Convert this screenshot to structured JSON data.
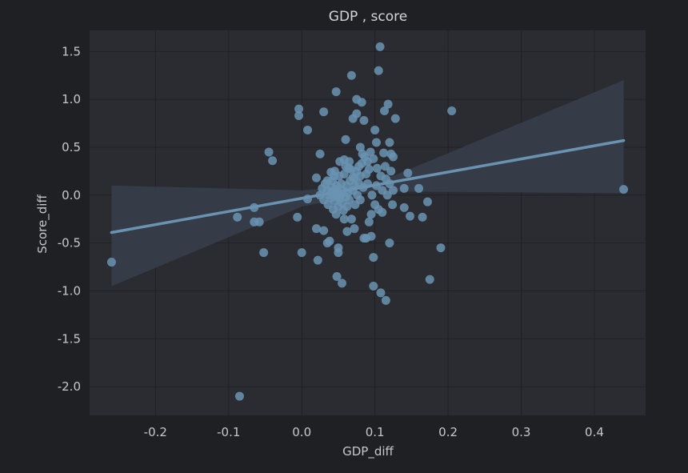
{
  "chart_data": {
    "type": "scatter",
    "title": "GDP , score",
    "xlabel": "GDP_diff",
    "ylabel": "Score_diff",
    "xlim": [
      -0.29,
      0.47
    ],
    "ylim": [
      -2.3,
      1.72
    ],
    "xticks": [
      -0.2,
      -0.1,
      0.0,
      0.1,
      0.2,
      0.3,
      0.4
    ],
    "xtick_labels": [
      "-0.2",
      "-0.1",
      "0.0",
      "0.1",
      "0.2",
      "0.3",
      "0.4"
    ],
    "yticks": [
      1.5,
      1.0,
      0.5,
      0.0,
      -0.5,
      -1.0,
      -1.5,
      -2.0
    ],
    "ytick_labels": [
      "1.5",
      "1.0",
      "0.5",
      "0.0",
      "-0.5",
      "-1.0",
      "-1.5",
      "-2.0"
    ],
    "grid": true,
    "regression": {
      "x_range": [
        -0.26,
        0.44
      ],
      "line": [
        [
          -0.26,
          -0.39
        ],
        [
          0.44,
          0.57
        ]
      ],
      "ci_upper": [
        [
          -0.26,
          0.1
        ],
        [
          0.0,
          0.05
        ],
        [
          0.1,
          0.12
        ],
        [
          0.44,
          1.2
        ]
      ],
      "ci_lower": [
        [
          -0.26,
          -0.95
        ],
        [
          0.0,
          -0.12
        ],
        [
          0.1,
          0.04
        ],
        [
          0.44,
          0.02
        ]
      ]
    },
    "series": [
      {
        "points": [
          [
            -0.26,
            -0.7
          ],
          [
            -0.085,
            -2.1
          ],
          [
            -0.088,
            -0.23
          ],
          [
            -0.065,
            -0.13
          ],
          [
            -0.065,
            -0.28
          ],
          [
            -0.058,
            -0.28
          ],
          [
            -0.052,
            -0.6
          ],
          [
            -0.045,
            0.45
          ],
          [
            -0.04,
            0.36
          ],
          [
            -0.006,
            -0.23
          ],
          [
            -0.004,
            0.9
          ],
          [
            -0.004,
            0.83
          ],
          [
            0.0,
            -0.6
          ],
          [
            0.008,
            0.68
          ],
          [
            0.008,
            -0.04
          ],
          [
            0.02,
            -0.35
          ],
          [
            0.022,
            -0.68
          ],
          [
            0.025,
            0.43
          ],
          [
            0.03,
            -0.37
          ],
          [
            0.03,
            0.87
          ],
          [
            0.035,
            -0.5
          ],
          [
            0.038,
            -0.48
          ],
          [
            0.04,
            0.24
          ],
          [
            0.042,
            0.03
          ],
          [
            0.045,
            0.25
          ],
          [
            0.047,
            1.08
          ],
          [
            0.048,
            -0.85
          ],
          [
            0.05,
            -0.55
          ],
          [
            0.05,
            -0.6
          ],
          [
            0.052,
            0.35
          ],
          [
            0.055,
            -0.92
          ],
          [
            0.058,
            -0.25
          ],
          [
            0.06,
            0.58
          ],
          [
            0.062,
            -0.38
          ],
          [
            0.065,
            0.35
          ],
          [
            0.068,
            1.25
          ],
          [
            0.07,
            0.8
          ],
          [
            0.072,
            -0.35
          ],
          [
            0.075,
            0.85
          ],
          [
            0.075,
            1.0
          ],
          [
            0.078,
            0.3
          ],
          [
            0.08,
            0.5
          ],
          [
            0.082,
            0.97
          ],
          [
            0.083,
            0.43
          ],
          [
            0.085,
            0.78
          ],
          [
            0.085,
            -0.45
          ],
          [
            0.088,
            -0.45
          ],
          [
            0.09,
            0.35
          ],
          [
            0.092,
            -0.28
          ],
          [
            0.095,
            -0.43
          ],
          [
            0.095,
            -0.2
          ],
          [
            0.098,
            -0.65
          ],
          [
            0.098,
            -0.95
          ],
          [
            0.1,
            0.68
          ],
          [
            0.102,
            0.55
          ],
          [
            0.103,
            0.28
          ],
          [
            0.105,
            1.3
          ],
          [
            0.107,
            1.55
          ],
          [
            0.108,
            -1.02
          ],
          [
            0.11,
            -0.18
          ],
          [
            0.112,
            0.44
          ],
          [
            0.113,
            0.88
          ],
          [
            0.115,
            -1.1
          ],
          [
            0.115,
            0.17
          ],
          [
            0.118,
            0.95
          ],
          [
            0.12,
            0.55
          ],
          [
            0.12,
            -0.5
          ],
          [
            0.122,
            0.25
          ],
          [
            0.125,
            0.4
          ],
          [
            0.125,
            0.05
          ],
          [
            0.128,
            0.8
          ],
          [
            0.14,
            0.07
          ],
          [
            0.14,
            -0.13
          ],
          [
            0.145,
            0.23
          ],
          [
            0.148,
            -0.22
          ],
          [
            0.16,
            0.07
          ],
          [
            0.165,
            -0.23
          ],
          [
            0.172,
            -0.07
          ],
          [
            0.175,
            -0.88
          ],
          [
            0.19,
            -0.55
          ],
          [
            0.205,
            0.88
          ],
          [
            0.44,
            0.06
          ],
          [
            0.02,
            0.18
          ],
          [
            0.025,
            0.0
          ],
          [
            0.028,
            0.07
          ],
          [
            0.03,
            -0.05
          ],
          [
            0.032,
            0.12
          ],
          [
            0.035,
            0.05
          ],
          [
            0.036,
            -0.1
          ],
          [
            0.038,
            0.0
          ],
          [
            0.04,
            0.08
          ],
          [
            0.04,
            -0.03
          ],
          [
            0.042,
            0.15
          ],
          [
            0.043,
            -0.15
          ],
          [
            0.044,
            0.02
          ],
          [
            0.045,
            -0.06
          ],
          [
            0.046,
            0.06
          ],
          [
            0.047,
            -0.2
          ],
          [
            0.048,
            0.1
          ],
          [
            0.049,
            -0.02
          ],
          [
            0.05,
            0.03
          ],
          [
            0.05,
            -0.12
          ],
          [
            0.051,
            0.2
          ],
          [
            0.052,
            -0.04
          ],
          [
            0.053,
            0.0
          ],
          [
            0.054,
            0.12
          ],
          [
            0.055,
            -0.08
          ],
          [
            0.056,
            0.05
          ],
          [
            0.057,
            -0.16
          ],
          [
            0.058,
            0.22
          ],
          [
            0.06,
            -0.02
          ],
          [
            0.061,
            0.1
          ],
          [
            0.062,
            -0.12
          ],
          [
            0.063,
            0.02
          ],
          [
            0.064,
            0.28
          ],
          [
            0.065,
            -0.05
          ],
          [
            0.066,
            0.15
          ],
          [
            0.068,
            -0.25
          ],
          [
            0.07,
            0.05
          ],
          [
            0.072,
            0.18
          ],
          [
            0.073,
            -0.1
          ],
          [
            0.075,
            0.25
          ],
          [
            0.076,
            0.0
          ],
          [
            0.078,
            0.12
          ],
          [
            0.08,
            -0.05
          ],
          [
            0.08,
            0.2
          ],
          [
            0.082,
            0.33
          ],
          [
            0.084,
            0.08
          ],
          [
            0.086,
            0.4
          ],
          [
            0.088,
            0.22
          ],
          [
            0.09,
            0.12
          ],
          [
            0.092,
            0.27
          ],
          [
            0.094,
            0.45
          ],
          [
            0.096,
            0.0
          ],
          [
            0.098,
            0.38
          ],
          [
            0.1,
            -0.1
          ],
          [
            0.102,
            0.1
          ],
          [
            0.105,
            -0.15
          ],
          [
            0.108,
            0.2
          ],
          [
            0.11,
            0.05
          ],
          [
            0.114,
            0.3
          ],
          [
            0.117,
            0.0
          ],
          [
            0.12,
            0.12
          ],
          [
            0.122,
            0.43
          ],
          [
            0.124,
            -0.1
          ],
          [
            0.035,
            0.15
          ],
          [
            0.058,
            0.37
          ],
          [
            0.06,
            0.3
          ],
          [
            0.067,
            0.27
          ],
          [
            0.07,
            0.19
          ],
          [
            0.072,
            0.1
          ],
          [
            0.044,
            0.2
          ]
        ]
      }
    ],
    "colors": {
      "point": "#6a93b1",
      "line": "#6a93b1",
      "band": "#37404c",
      "plot_bg": "#2b2c32",
      "page_bg": "#1f2023"
    }
  }
}
